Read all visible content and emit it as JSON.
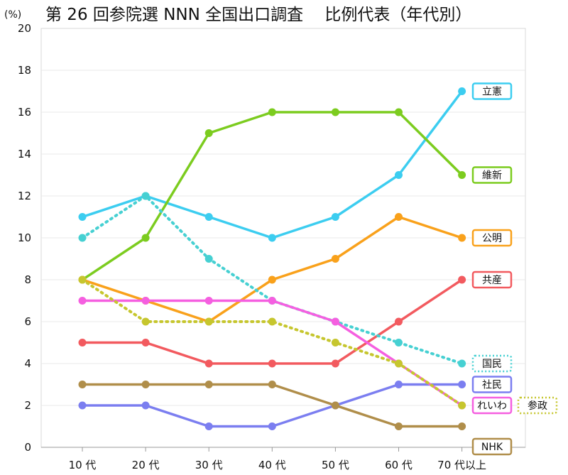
{
  "chart_data": {
    "type": "line",
    "title": "第 26 回参院選 NNN 全国出口調査　 比例代表（年代別）",
    "ylabel": "(%)",
    "xlabel": "",
    "ylim": [
      0,
      20
    ],
    "yticks": [
      0,
      2,
      4,
      6,
      8,
      10,
      12,
      14,
      16,
      18,
      20
    ],
    "grid": true,
    "categories": [
      "10 代",
      "20 代",
      "30 代",
      "40 代",
      "50 代",
      "60 代",
      "70 代以上"
    ],
    "series": [
      {
        "name": "立憲",
        "color": "#3ccdf0",
        "dashed": false,
        "values": [
          11,
          12,
          11,
          10,
          11,
          13,
          17
        ]
      },
      {
        "name": "維新",
        "color": "#7ccc1f",
        "dashed": false,
        "values": [
          8,
          10,
          15,
          16,
          16,
          16,
          13
        ]
      },
      {
        "name": "公明",
        "color": "#f9a11b",
        "dashed": false,
        "values": [
          8,
          7,
          6,
          8,
          9,
          11,
          10
        ]
      },
      {
        "name": "共産",
        "color": "#f25a5f",
        "dashed": false,
        "values": [
          5,
          5,
          4,
          4,
          4,
          6,
          8
        ]
      },
      {
        "name": "国民",
        "color": "#46d0d2",
        "dashed": true,
        "values": [
          10,
          12,
          9,
          7,
          6,
          5,
          4
        ]
      },
      {
        "name": "社民",
        "color": "#7b7ef0",
        "dashed": false,
        "values": [
          2,
          2,
          1,
          1,
          2,
          3,
          3
        ]
      },
      {
        "name": "れいわ",
        "color": "#f55fe0",
        "dashed": false,
        "values": [
          7,
          7,
          7,
          7,
          6,
          4,
          2
        ]
      },
      {
        "name": "参政",
        "color": "#c6c62e",
        "dashed": true,
        "values": [
          8,
          6,
          6,
          6,
          5,
          4,
          2
        ]
      },
      {
        "name": "NHK",
        "color": "#b08e4a",
        "dashed": false,
        "values": [
          3,
          3,
          3,
          3,
          2,
          1,
          1
        ]
      }
    ]
  }
}
